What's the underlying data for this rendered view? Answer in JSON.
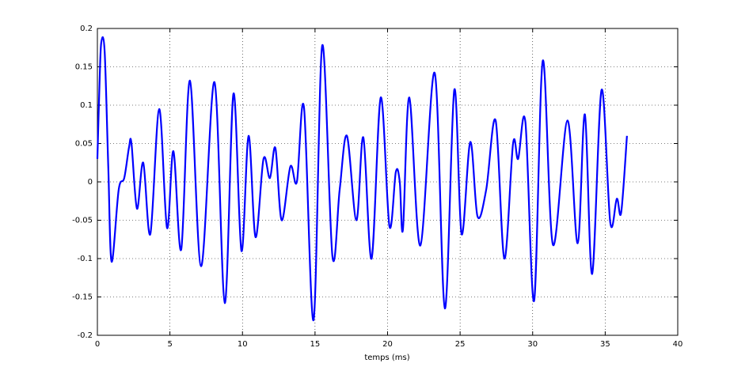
{
  "chart_data": {
    "type": "line",
    "xlabel": "temps (ms)",
    "x": [
      0,
      0.15,
      0.27,
      0.5,
      0.75,
      0.98,
      1.47,
      1.85,
      2.18,
      2.35,
      2.73,
      3.16,
      3.65,
      4.26,
      4.8,
      5.24,
      5.78,
      6.38,
      7.15,
      8.07,
      8.78,
      9.38,
      9.93,
      10.42,
      10.9,
      11.45,
      11.89,
      12.27,
      12.7,
      13.3,
      13.75,
      14.24,
      14.9,
      15.5,
      16.2,
      16.7,
      17.2,
      17.85,
      18.33,
      18.9,
      19.53,
      20.13,
      20.57,
      20.84,
      21.06,
      21.5,
      22.26,
      23.25,
      23.95,
      24.6,
      25.1,
      25.7,
      26.2,
      26.8,
      27.45,
      28.05,
      28.65,
      29.0,
      29.5,
      30.1,
      30.7,
      31.4,
      32.4,
      33.1,
      33.6,
      34.1,
      34.75,
      35.35,
      35.8,
      36.1,
      36.5
    ],
    "series": [
      {
        "color": "#0000ff",
        "values": [
          0.03,
          0.13,
          0.182,
          0.17,
          0.02,
          -0.104,
          -0.01,
          0.005,
          0.045,
          0.05,
          -0.035,
          0.025,
          -0.068,
          0.095,
          -0.06,
          0.04,
          -0.088,
          0.132,
          -0.11,
          0.13,
          -0.158,
          0.115,
          -0.09,
          0.06,
          -0.072,
          0.03,
          0.005,
          0.044,
          -0.05,
          0.02,
          0.0,
          0.097,
          -0.18,
          0.178,
          -0.097,
          -0.01,
          0.06,
          -0.05,
          0.058,
          -0.1,
          0.11,
          -0.058,
          0.013,
          0.0,
          -0.062,
          0.11,
          -0.083,
          0.142,
          -0.165,
          0.12,
          -0.068,
          0.052,
          -0.045,
          -0.01,
          0.08,
          -0.1,
          0.05,
          0.03,
          0.078,
          -0.155,
          0.158,
          -0.082,
          0.08,
          -0.08,
          0.088,
          -0.12,
          0.12,
          -0.053,
          -0.022,
          -0.04,
          0.06
        ]
      }
    ],
    "xlim": [
      0,
      40
    ],
    "xticks": [
      0,
      5,
      10,
      15,
      20,
      25,
      30,
      35,
      40
    ],
    "ylim": [
      -0.2,
      0.2
    ],
    "yticks": [
      -0.2,
      -0.15,
      -0.1,
      -0.05,
      0,
      0.05,
      0.1,
      0.15,
      0.2
    ],
    "grid": true
  }
}
